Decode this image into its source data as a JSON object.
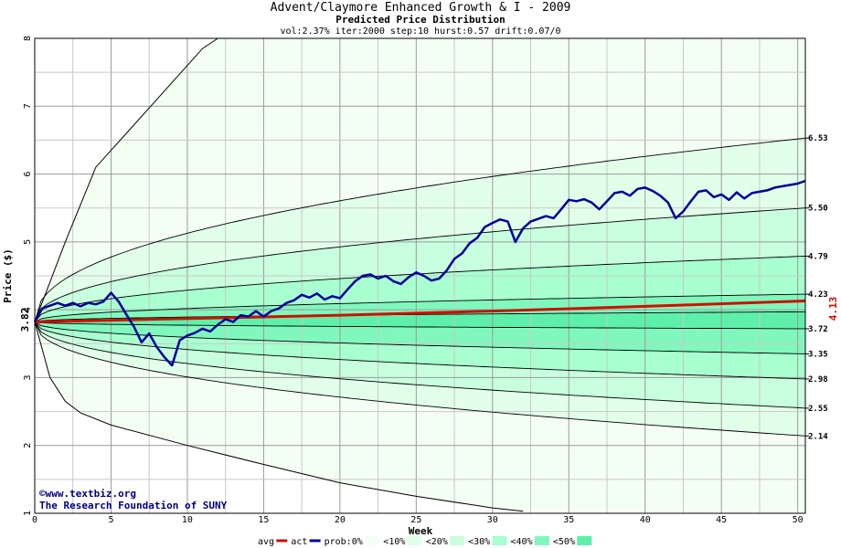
{
  "chart_data": {
    "type": "area",
    "title": "Advent/Claymore Enhanced Growth & I - 2009",
    "subtitle": "Predicted Price Distribution",
    "parameters": "vol:2.37% iter:2000 step:10 hurst:0.57 drift:0.07/0",
    "xlabel": "Week",
    "ylabel": "Price ($)",
    "xlim": [
      0,
      50.5
    ],
    "ylim": [
      1,
      8
    ],
    "x_ticks": [
      "0",
      "5",
      "10",
      "15",
      "20",
      "25",
      "30",
      "35",
      "40",
      "45",
      "50"
    ],
    "y_ticks": [
      "1",
      "2",
      "3",
      "4",
      "5",
      "6",
      "7",
      "8"
    ],
    "start_price": "3.82",
    "end_average": "4.13",
    "end_labels": [
      "6.53",
      "5.50",
      "4.79",
      "4.23",
      "3.72",
      "3.35",
      "2.98",
      "2.55",
      "2.14"
    ],
    "percentile_end_values": [
      6.53,
      5.5,
      4.79,
      4.23,
      3.97,
      3.72,
      3.35,
      2.98,
      2.55,
      2.14
    ],
    "outer_bounds": {
      "upper": [
        [
          0,
          3.82
        ],
        [
          2,
          5.0
        ],
        [
          4,
          6.1
        ],
        [
          6,
          6.6
        ],
        [
          8,
          7.1
        ],
        [
          10,
          7.6
        ],
        [
          11,
          7.85
        ],
        [
          12,
          8.0
        ]
      ],
      "lower": [
        [
          0,
          3.82
        ],
        [
          1,
          3.0
        ],
        [
          2,
          2.65
        ],
        [
          3,
          2.48
        ],
        [
          5,
          2.3
        ],
        [
          10,
          2.0
        ],
        [
          15,
          1.72
        ],
        [
          20,
          1.45
        ],
        [
          25,
          1.25
        ],
        [
          30,
          1.08
        ],
        [
          32,
          1.03
        ]
      ]
    },
    "average": {
      "name": "avg",
      "color": "#cc1100",
      "points": [
        [
          0,
          3.82
        ],
        [
          10,
          3.87
        ],
        [
          20,
          3.92
        ],
        [
          30,
          3.98
        ],
        [
          40,
          4.05
        ],
        [
          50.5,
          4.13
        ]
      ]
    },
    "actual": {
      "name": "act",
      "color": "#000099",
      "points": [
        [
          0,
          3.82
        ],
        [
          0.5,
          4.02
        ],
        [
          1,
          4.06
        ],
        [
          1.5,
          4.1
        ],
        [
          2,
          4.06
        ],
        [
          2.5,
          4.1
        ],
        [
          3,
          4.05
        ],
        [
          3.5,
          4.1
        ],
        [
          4,
          4.08
        ],
        [
          4.5,
          4.12
        ],
        [
          5,
          4.25
        ],
        [
          5.5,
          4.12
        ],
        [
          6,
          3.93
        ],
        [
          6.5,
          3.75
        ],
        [
          7,
          3.52
        ],
        [
          7.5,
          3.65
        ],
        [
          8,
          3.45
        ],
        [
          8.5,
          3.3
        ],
        [
          9,
          3.18
        ],
        [
          9.5,
          3.55
        ],
        [
          10,
          3.62
        ],
        [
          10.5,
          3.66
        ],
        [
          11,
          3.72
        ],
        [
          11.5,
          3.68
        ],
        [
          12,
          3.78
        ],
        [
          12.5,
          3.86
        ],
        [
          13,
          3.82
        ],
        [
          13.5,
          3.92
        ],
        [
          14,
          3.9
        ],
        [
          14.5,
          3.98
        ],
        [
          15,
          3.9
        ],
        [
          15.5,
          3.98
        ],
        [
          16,
          4.02
        ],
        [
          16.5,
          4.1
        ],
        [
          17,
          4.14
        ],
        [
          17.5,
          4.22
        ],
        [
          18,
          4.18
        ],
        [
          18.5,
          4.24
        ],
        [
          19,
          4.15
        ],
        [
          19.5,
          4.2
        ],
        [
          20,
          4.17
        ],
        [
          20.5,
          4.3
        ],
        [
          21,
          4.42
        ],
        [
          21.5,
          4.5
        ],
        [
          22,
          4.52
        ],
        [
          22.5,
          4.46
        ],
        [
          23,
          4.5
        ],
        [
          23.5,
          4.42
        ],
        [
          24,
          4.38
        ],
        [
          24.5,
          4.48
        ],
        [
          25,
          4.55
        ],
        [
          25.5,
          4.5
        ],
        [
          26,
          4.43
        ],
        [
          26.5,
          4.46
        ],
        [
          27,
          4.58
        ],
        [
          27.5,
          4.75
        ],
        [
          28,
          4.83
        ],
        [
          28.5,
          4.98
        ],
        [
          29,
          5.06
        ],
        [
          29.5,
          5.22
        ],
        [
          30,
          5.28
        ],
        [
          30.5,
          5.33
        ],
        [
          31,
          5.3
        ],
        [
          31.5,
          5.0
        ],
        [
          32,
          5.2
        ],
        [
          32.5,
          5.3
        ],
        [
          33,
          5.34
        ],
        [
          33.5,
          5.38
        ],
        [
          34,
          5.35
        ],
        [
          34.5,
          5.48
        ],
        [
          35,
          5.62
        ],
        [
          35.5,
          5.6
        ],
        [
          36,
          5.63
        ],
        [
          36.5,
          5.58
        ],
        [
          37,
          5.48
        ],
        [
          37.5,
          5.6
        ],
        [
          38,
          5.72
        ],
        [
          38.5,
          5.74
        ],
        [
          39,
          5.68
        ],
        [
          39.5,
          5.78
        ],
        [
          40,
          5.8
        ],
        [
          40.5,
          5.75
        ],
        [
          41,
          5.68
        ],
        [
          41.5,
          5.58
        ],
        [
          42,
          5.35
        ],
        [
          42.5,
          5.45
        ],
        [
          43,
          5.6
        ],
        [
          43.5,
          5.74
        ],
        [
          44,
          5.76
        ],
        [
          44.5,
          5.66
        ],
        [
          45,
          5.7
        ],
        [
          45.5,
          5.62
        ],
        [
          46,
          5.73
        ],
        [
          46.5,
          5.64
        ],
        [
          47,
          5.72
        ],
        [
          47.5,
          5.74
        ],
        [
          48,
          5.76
        ],
        [
          48.5,
          5.8
        ],
        [
          49,
          5.82
        ],
        [
          49.5,
          5.84
        ],
        [
          50,
          5.86
        ],
        [
          50.5,
          5.9
        ]
      ]
    },
    "probability_bands": [
      {
        "label": "0%",
        "color": "#f4fff4"
      },
      {
        "label": "<10%",
        "color": "#e2ffea"
      },
      {
        "label": "<20%",
        "color": "#c8ffde"
      },
      {
        "label": "<30%",
        "color": "#a8ffcf"
      },
      {
        "label": "<40%",
        "color": "#80f8bd"
      },
      {
        "label": "<50%",
        "color": "#5ef0aa"
      }
    ],
    "legend": {
      "items": [
        "avg",
        "act",
        "prob:0%",
        "<10%",
        "<20%",
        "<30%",
        "<40%",
        "<50%"
      ]
    },
    "grid": true
  },
  "credits": {
    "url": "©www.textbiz.org",
    "organization": "The Research Foundation of SUNY"
  }
}
